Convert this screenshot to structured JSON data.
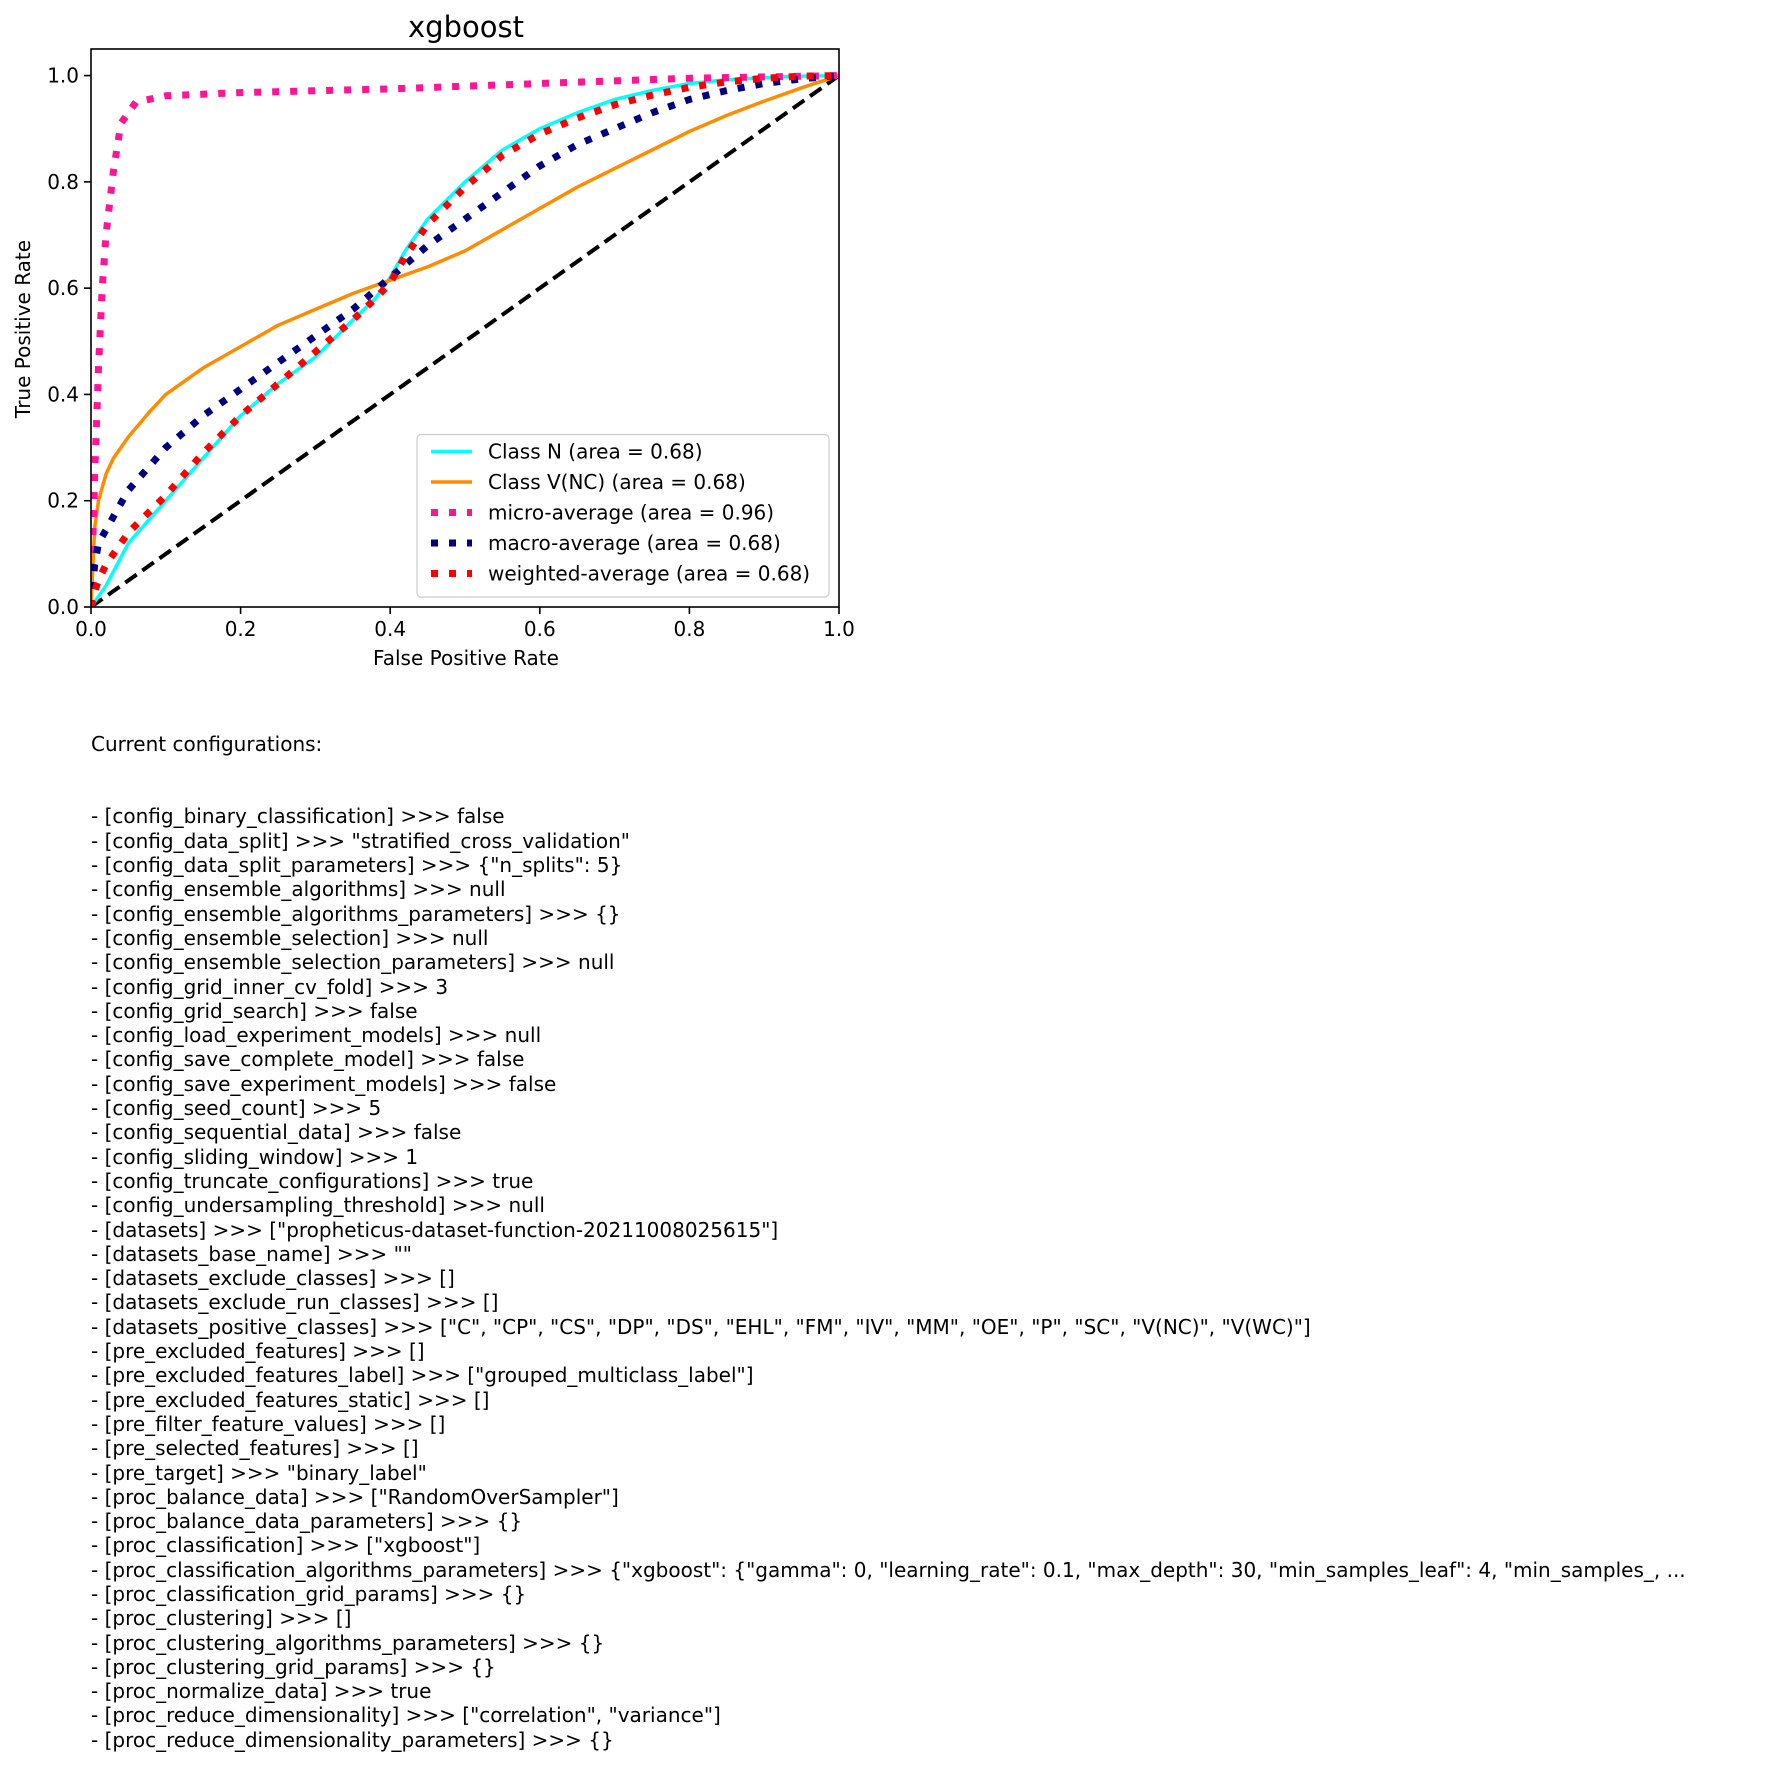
{
  "chart_data": {
    "type": "line",
    "title": "xgboost",
    "xlabel": "False Positive Rate",
    "ylabel": "True Positive Rate",
    "xlim": [
      0.0,
      1.0
    ],
    "ylim": [
      0.0,
      1.05
    ],
    "xticks": [
      "0.0",
      "0.2",
      "0.4",
      "0.6",
      "0.8",
      "1.0"
    ],
    "yticks": [
      "0.0",
      "0.2",
      "0.4",
      "0.6",
      "0.8",
      "1.0"
    ],
    "grid": false,
    "legend_position": "lower right",
    "series": [
      {
        "name": "Class N (area = 0.68)",
        "color": "#00ffff",
        "style": "solid",
        "x": [
          0.0,
          0.02,
          0.05,
          0.1,
          0.15,
          0.2,
          0.25,
          0.3,
          0.35,
          0.38,
          0.4,
          0.42,
          0.45,
          0.5,
          0.55,
          0.6,
          0.65,
          0.7,
          0.75,
          0.8,
          0.85,
          0.9,
          0.95,
          1.0
        ],
        "y": [
          0.0,
          0.04,
          0.12,
          0.2,
          0.28,
          0.36,
          0.42,
          0.47,
          0.54,
          0.58,
          0.62,
          0.67,
          0.73,
          0.8,
          0.86,
          0.9,
          0.93,
          0.955,
          0.972,
          0.985,
          0.992,
          0.996,
          0.999,
          1.0
        ]
      },
      {
        "name": "Class V(NC) (area = 0.68)",
        "color": "#ff8c00",
        "style": "solid",
        "x": [
          0.0,
          0.005,
          0.01,
          0.02,
          0.03,
          0.05,
          0.08,
          0.1,
          0.15,
          0.2,
          0.25,
          0.3,
          0.35,
          0.4,
          0.45,
          0.5,
          0.55,
          0.6,
          0.65,
          0.7,
          0.75,
          0.8,
          0.85,
          0.9,
          0.95,
          1.0
        ],
        "y": [
          0.0,
          0.15,
          0.2,
          0.25,
          0.28,
          0.32,
          0.37,
          0.4,
          0.45,
          0.49,
          0.53,
          0.56,
          0.59,
          0.615,
          0.64,
          0.67,
          0.71,
          0.75,
          0.79,
          0.825,
          0.86,
          0.895,
          0.925,
          0.952,
          0.977,
          1.0
        ]
      },
      {
        "name": "micro-average (area = 0.96)",
        "color": "#ff1493",
        "style": "dotted",
        "x": [
          0.0,
          0.005,
          0.01,
          0.015,
          0.02,
          0.03,
          0.04,
          0.06,
          0.1,
          0.2,
          0.4,
          0.6,
          0.8,
          1.0
        ],
        "y": [
          0.0,
          0.25,
          0.45,
          0.6,
          0.7,
          0.82,
          0.91,
          0.95,
          0.962,
          0.968,
          0.975,
          0.985,
          0.995,
          1.0
        ]
      },
      {
        "name": "macro-average (area = 0.68)",
        "color": "#000080",
        "style": "dotted",
        "x": [
          0.0,
          0.005,
          0.01,
          0.03,
          0.05,
          0.1,
          0.15,
          0.2,
          0.25,
          0.3,
          0.35,
          0.4,
          0.45,
          0.5,
          0.55,
          0.6,
          0.65,
          0.7,
          0.75,
          0.8,
          0.85,
          0.9,
          0.95,
          1.0
        ],
        "y": [
          0.0,
          0.08,
          0.12,
          0.17,
          0.22,
          0.3,
          0.36,
          0.41,
          0.46,
          0.51,
          0.56,
          0.62,
          0.68,
          0.73,
          0.78,
          0.83,
          0.87,
          0.9,
          0.93,
          0.955,
          0.972,
          0.985,
          0.994,
          1.0
        ]
      },
      {
        "name": "weighted-average (area = 0.68)",
        "color": "#ff0000",
        "style": "dotted",
        "x": [
          0.0,
          0.005,
          0.01,
          0.02,
          0.05,
          0.1,
          0.15,
          0.2,
          0.25,
          0.3,
          0.35,
          0.38,
          0.4,
          0.42,
          0.45,
          0.5,
          0.55,
          0.6,
          0.65,
          0.7,
          0.75,
          0.8,
          0.85,
          0.9,
          0.95,
          1.0
        ],
        "y": [
          0.0,
          0.03,
          0.05,
          0.08,
          0.14,
          0.21,
          0.29,
          0.36,
          0.42,
          0.48,
          0.54,
          0.58,
          0.61,
          0.66,
          0.72,
          0.79,
          0.85,
          0.89,
          0.92,
          0.945,
          0.963,
          0.978,
          0.988,
          0.995,
          0.999,
          1.0
        ]
      }
    ],
    "reference_line": {
      "x": [
        0.0,
        1.0
      ],
      "y": [
        0.0,
        1.0
      ],
      "color": "#000000",
      "style": "dashed"
    }
  },
  "config": {
    "heading": "Current configurations:",
    "lines": [
      "- [config_binary_classification] >>> false",
      "- [config_data_split] >>> \"stratified_cross_validation\"",
      "- [config_data_split_parameters] >>> {\"n_splits\": 5}",
      "- [config_ensemble_algorithms] >>> null",
      "- [config_ensemble_algorithms_parameters] >>> {}",
      "- [config_ensemble_selection] >>> null",
      "- [config_ensemble_selection_parameters] >>> null",
      "- [config_grid_inner_cv_fold] >>> 3",
      "- [config_grid_search] >>> false",
      "- [config_load_experiment_models] >>> null",
      "- [config_save_complete_model] >>> false",
      "- [config_save_experiment_models] >>> false",
      "- [config_seed_count] >>> 5",
      "- [config_sequential_data] >>> false",
      "- [config_sliding_window] >>> 1",
      "- [config_truncate_configurations] >>> true",
      "- [config_undersampling_threshold] >>> null",
      "- [datasets] >>> [\"propheticus-dataset-function-20211008025615\"]",
      "- [datasets_base_name] >>> \"\"",
      "- [datasets_exclude_classes] >>> []",
      "- [datasets_exclude_run_classes] >>> []",
      "- [datasets_positive_classes] >>> [\"C\", \"CP\", \"CS\", \"DP\", \"DS\", \"EHL\", \"FM\", \"IV\", \"MM\", \"OE\", \"P\", \"SC\", \"V(NC)\", \"V(WC)\"]",
      "- [pre_excluded_features] >>> []",
      "- [pre_excluded_features_label] >>> [\"grouped_multiclass_label\"]",
      "- [pre_excluded_features_static] >>> []",
      "- [pre_filter_feature_values] >>> []",
      "- [pre_selected_features] >>> []",
      "- [pre_target] >>> \"binary_label\"",
      "- [proc_balance_data] >>> [\"RandomOverSampler\"]",
      "- [proc_balance_data_parameters] >>> {}",
      "- [proc_classification] >>> [\"xgboost\"]",
      "- [proc_classification_algorithms_parameters] >>> {\"xgboost\": {\"gamma\": 0, \"learning_rate\": 0.1, \"max_depth\": 30, \"min_samples_leaf\": 4, \"min_samples_, ...",
      "- [proc_classification_grid_params] >>> {}",
      "- [proc_clustering] >>> []",
      "- [proc_clustering_algorithms_parameters] >>> {}",
      "- [proc_clustering_grid_params] >>> {}",
      "- [proc_normalize_data] >>> true",
      "- [proc_reduce_dimensionality] >>> [\"correlation\", \"variance\"]",
      "- [proc_reduce_dimensionality_parameters] >>> {}"
    ]
  }
}
